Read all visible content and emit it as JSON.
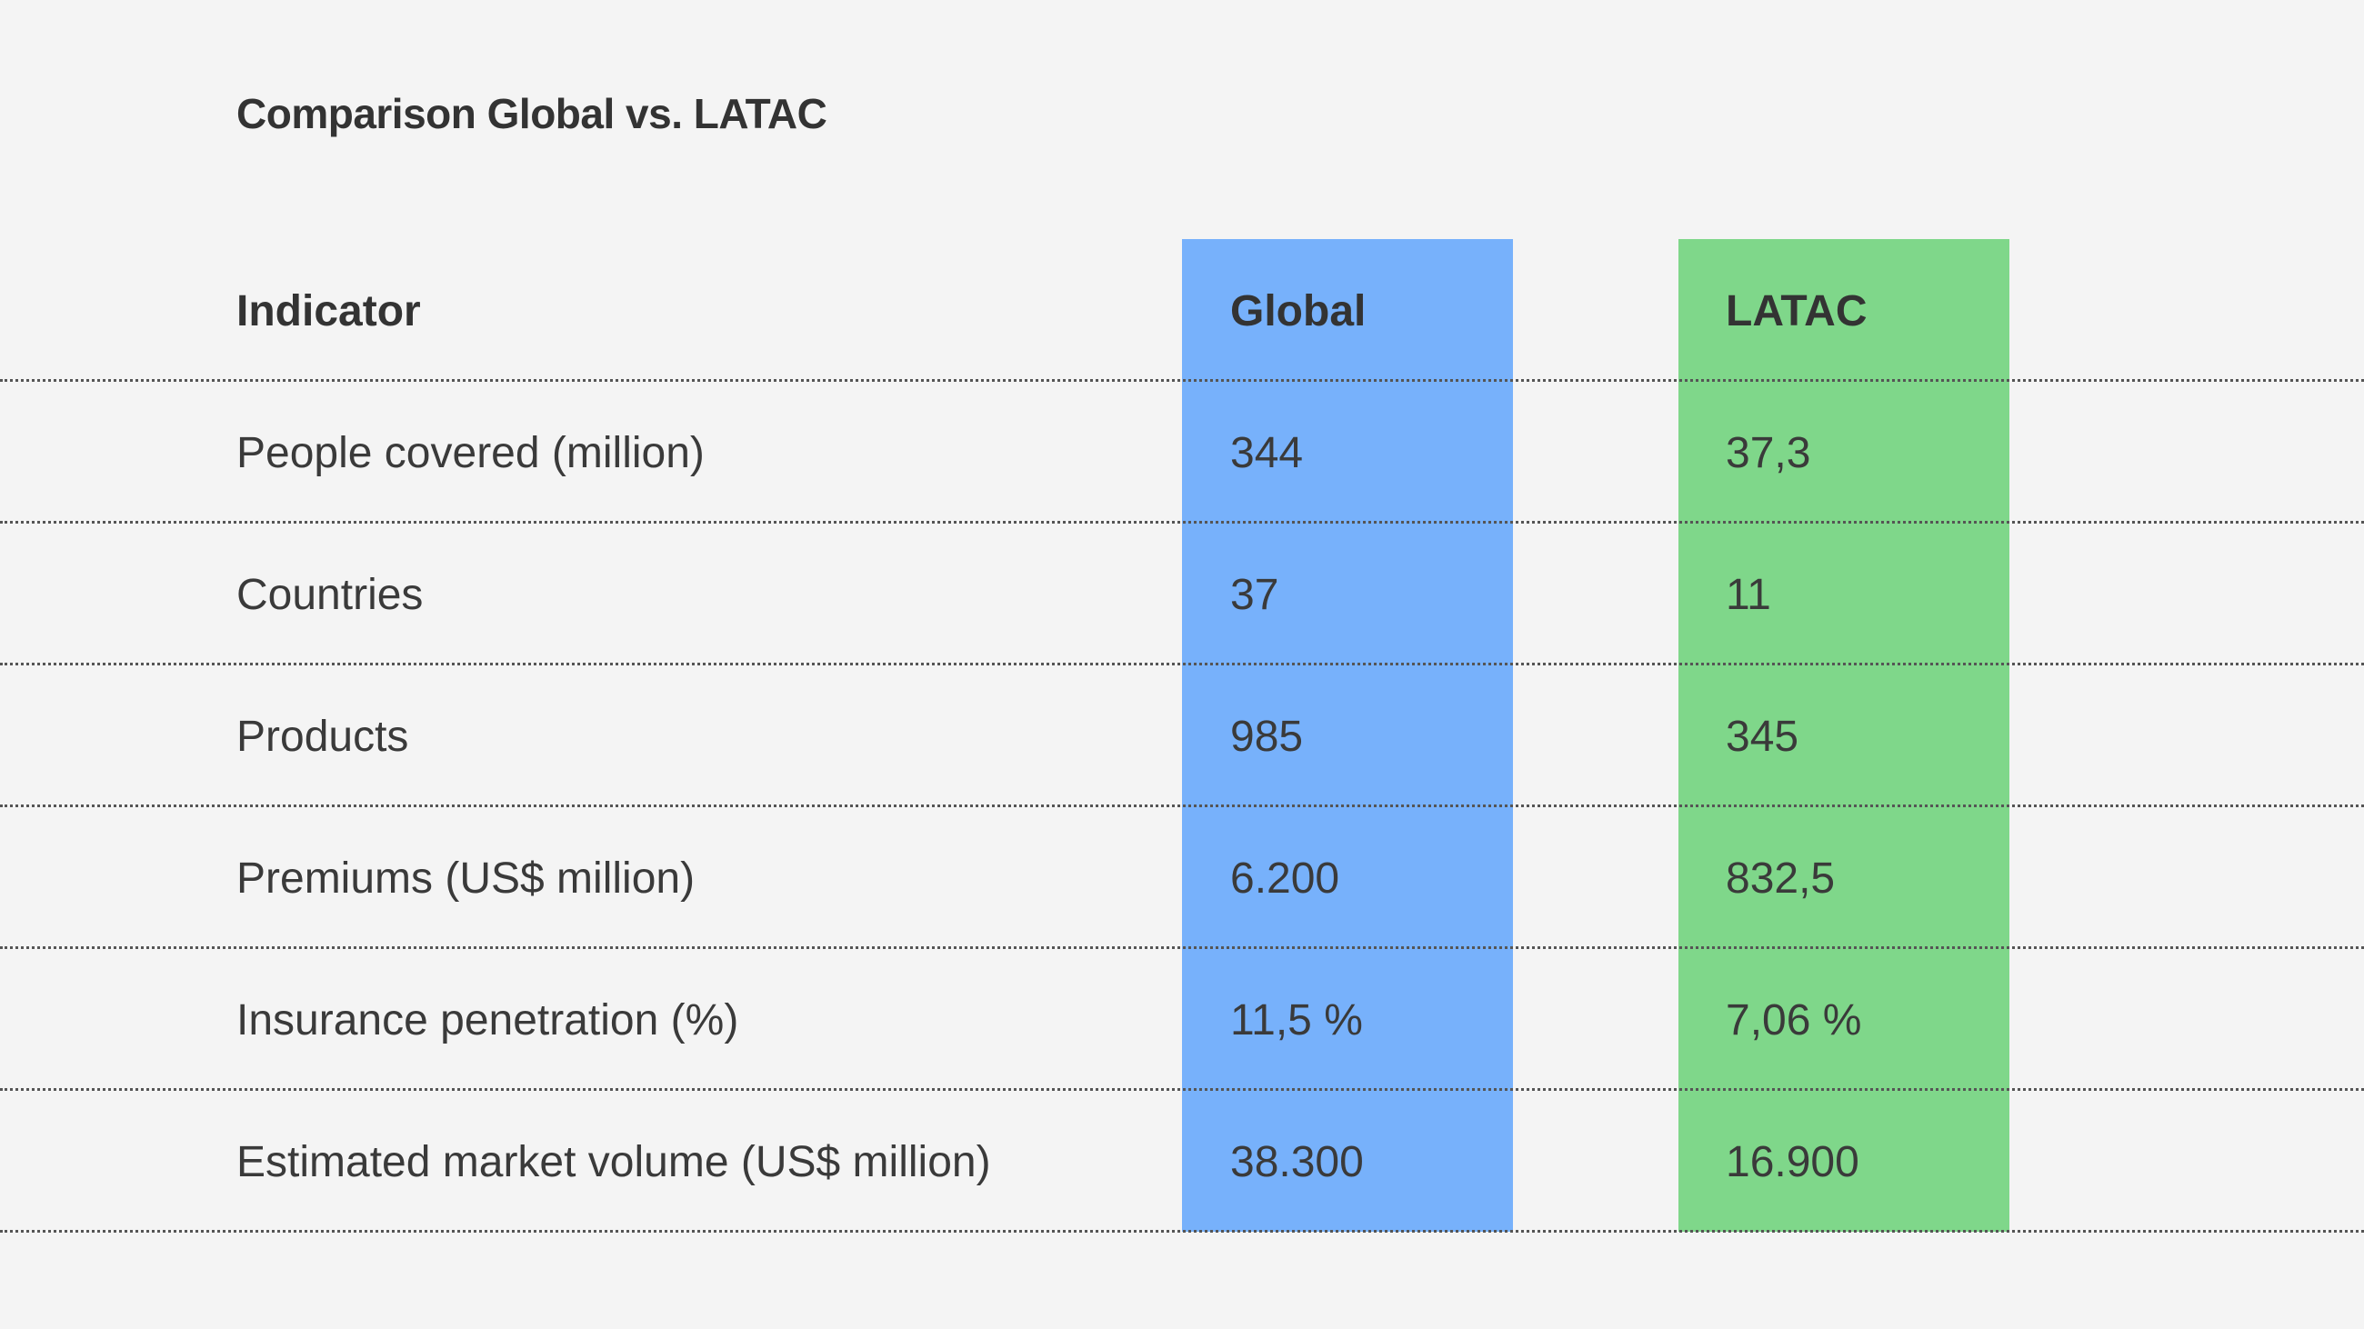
{
  "title": "Comparison Global vs. LATAC",
  "colors": {
    "global": "#77b1fb",
    "latac": "#7fd78a",
    "background": "#f4f4f4",
    "text": "#333333"
  },
  "headers": [
    "Indicator",
    "Global",
    "LATAC"
  ],
  "rows": [
    [
      "People covered (million)",
      "344",
      "37,3"
    ],
    [
      "Countries",
      "37",
      "11"
    ],
    [
      "Products",
      "985",
      "345"
    ],
    [
      "Premiums (US$ million)",
      "6.200",
      "832,5"
    ],
    [
      "Insurance penetration (%)",
      "11,5 %",
      "7,06 %"
    ],
    [
      "Estimated market volume (US$ million)",
      "38.300",
      "16.900"
    ]
  ]
}
